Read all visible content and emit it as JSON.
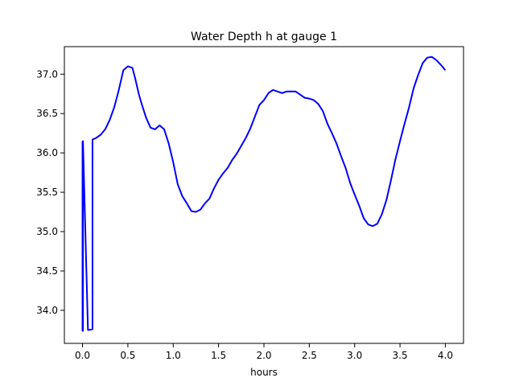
{
  "chart_data": {
    "type": "line",
    "title": "Water Depth h at gauge 1",
    "xlabel": "hours",
    "ylabel": "",
    "xlim": [
      -0.2,
      4.2
    ],
    "ylim": [
      33.58,
      37.35
    ],
    "xticks": [
      0.0,
      0.5,
      1.0,
      1.5,
      2.0,
      2.5,
      3.0,
      3.5,
      4.0
    ],
    "xtick_labels": [
      "0.0",
      "0.5",
      "1.0",
      "1.5",
      "2.0",
      "2.5",
      "3.0",
      "3.5",
      "4.0"
    ],
    "yticks": [
      34.0,
      34.5,
      35.0,
      35.5,
      36.0,
      36.5,
      37.0
    ],
    "ytick_labels": [
      "34.0",
      "34.5",
      "35.0",
      "35.5",
      "36.0",
      "36.5",
      "37.0"
    ],
    "grid": false,
    "series": [
      {
        "color": "#0000ff",
        "x": [
          0.0,
          0.0,
          0.005,
          0.005,
          0.06,
          0.11,
          0.11,
          0.15,
          0.2,
          0.25,
          0.3,
          0.35,
          0.4,
          0.45,
          0.5,
          0.55,
          0.58,
          0.62,
          0.65,
          0.7,
          0.75,
          0.8,
          0.85,
          0.9,
          0.95,
          1.0,
          1.05,
          1.1,
          1.15,
          1.2,
          1.25,
          1.3,
          1.35,
          1.4,
          1.45,
          1.5,
          1.55,
          1.6,
          1.65,
          1.7,
          1.75,
          1.8,
          1.85,
          1.9,
          1.95,
          2.0,
          2.05,
          2.1,
          2.15,
          2.2,
          2.25,
          2.3,
          2.35,
          2.4,
          2.45,
          2.5,
          2.55,
          2.6,
          2.65,
          2.7,
          2.75,
          2.8,
          2.85,
          2.9,
          2.95,
          3.0,
          3.05,
          3.1,
          3.15,
          3.2,
          3.25,
          3.3,
          3.35,
          3.4,
          3.45,
          3.5,
          3.55,
          3.6,
          3.65,
          3.7,
          3.75,
          3.8,
          3.85,
          3.9,
          3.95,
          4.0
        ],
        "y": [
          36.15,
          33.74,
          33.74,
          36.15,
          33.75,
          33.76,
          36.17,
          36.19,
          36.23,
          36.3,
          36.42,
          36.58,
          36.8,
          37.05,
          37.1,
          37.08,
          36.95,
          36.75,
          36.63,
          36.45,
          36.32,
          36.3,
          36.35,
          36.3,
          36.12,
          35.88,
          35.6,
          35.45,
          35.36,
          35.26,
          35.25,
          35.28,
          35.36,
          35.42,
          35.55,
          35.66,
          35.74,
          35.81,
          35.91,
          35.99,
          36.09,
          36.19,
          36.31,
          36.46,
          36.61,
          36.67,
          36.76,
          36.8,
          36.78,
          36.76,
          36.78,
          36.78,
          36.78,
          36.74,
          36.7,
          36.69,
          36.67,
          36.62,
          36.53,
          36.37,
          36.25,
          36.12,
          35.96,
          35.81,
          35.62,
          35.47,
          35.33,
          35.17,
          35.09,
          35.07,
          35.1,
          35.22,
          35.4,
          35.65,
          35.92,
          36.15,
          36.37,
          36.58,
          36.82,
          36.99,
          37.14,
          37.21,
          37.22,
          37.18,
          37.12,
          37.05
        ]
      }
    ]
  }
}
